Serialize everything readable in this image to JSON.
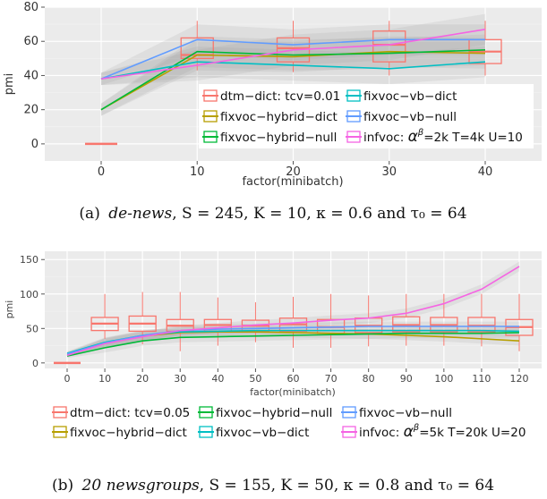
{
  "chart_data": [
    {
      "type": "line",
      "xlabel": "factor(minibatch)",
      "ylabel": "pmi",
      "categories": [
        "0",
        "10",
        "20",
        "30",
        "40"
      ],
      "ylim": [
        -10,
        80
      ],
      "yticks": [
        0,
        20,
        40,
        60,
        80
      ],
      "grid": true,
      "legend_position": "bottom-right inside",
      "series": [
        {
          "name": "dtm−dict: tcv=0.01",
          "color": "#f8766d",
          "kind": "boxplot",
          "boxes": [
            {
              "x": "0",
              "min": 0,
              "q1": 0,
              "median": 0,
              "q3": 0,
              "max": 0
            },
            {
              "x": "10",
              "min": 43,
              "q1": 50,
              "median": 52,
              "q3": 62,
              "max": 72
            },
            {
              "x": "20",
              "min": 42,
              "q1": 48,
              "median": 56,
              "q3": 62,
              "max": 72
            },
            {
              "x": "30",
              "min": 40,
              "q1": 48,
              "median": 58,
              "q3": 66,
              "max": 72
            },
            {
              "x": "40",
              "min": 40,
              "q1": 47,
              "median": 54,
              "q3": 61,
              "max": 72
            }
          ]
        },
        {
          "name": "fixvoc−hybrid−dict",
          "color": "#b79f00",
          "values": [
            20,
            52,
            51,
            54,
            53
          ]
        },
        {
          "name": "fixvoc−hybrid−null",
          "color": "#00ba38",
          "values": [
            20,
            54,
            52,
            53,
            55
          ]
        },
        {
          "name": "fixvoc−vb−dict",
          "color": "#00bfc4",
          "values": [
            38,
            48,
            46,
            44,
            48
          ]
        },
        {
          "name": "fixvoc−vb−null",
          "color": "#619cff",
          "values": [
            38,
            61,
            58,
            61,
            61
          ]
        },
        {
          "name": "infvoc: α^β=2k T=4k U=10",
          "color": "#f564e3",
          "values": [
            38,
            46,
            55,
            58,
            67
          ]
        }
      ],
      "caption_label": "(a)",
      "caption_dataset": "de-news",
      "caption_rest": ", S = 245, K = 10, κ = 0.6 and τ₀ = 64"
    },
    {
      "type": "line",
      "xlabel": "factor(minibatch)",
      "ylabel": "pmi",
      "categories": [
        "0",
        "10",
        "20",
        "30",
        "40",
        "50",
        "60",
        "70",
        "80",
        "90",
        "100",
        "110",
        "120"
      ],
      "ylim": [
        -8,
        162
      ],
      "yticks": [
        0,
        50,
        100,
        150
      ],
      "grid": true,
      "legend_position": "bottom",
      "series": [
        {
          "name": "dtm−dict: tcv=0.05",
          "color": "#f8766d",
          "kind": "boxplot",
          "boxes": [
            {
              "x": "0",
              "min": 0,
              "q1": 0,
              "median": 0,
              "q3": 0,
              "max": 0
            },
            {
              "x": "10",
              "min": 35,
              "q1": 47,
              "median": 57,
              "q3": 66,
              "max": 100
            },
            {
              "x": "20",
              "min": 27,
              "q1": 46,
              "median": 57,
              "q3": 68,
              "max": 103
            },
            {
              "x": "30",
              "min": 17,
              "q1": 46,
              "median": 54,
              "q3": 63,
              "max": 103
            },
            {
              "x": "40",
              "min": 25,
              "q1": 46,
              "median": 55,
              "q3": 63,
              "max": 95
            },
            {
              "x": "50",
              "min": 30,
              "q1": 46,
              "median": 54,
              "q3": 62,
              "max": 88
            },
            {
              "x": "60",
              "min": 22,
              "q1": 46,
              "median": 56,
              "q3": 65,
              "max": 96
            },
            {
              "x": "70",
              "min": 22,
              "q1": 43,
              "median": 52,
              "q3": 63,
              "max": 100
            },
            {
              "x": "80",
              "min": 24,
              "q1": 44,
              "median": 54,
              "q3": 65,
              "max": 98
            },
            {
              "x": "90",
              "min": 25,
              "q1": 45,
              "median": 55,
              "q3": 67,
              "max": 100
            },
            {
              "x": "100",
              "min": 25,
              "q1": 45,
              "median": 55,
              "q3": 66,
              "max": 100
            },
            {
              "x": "110",
              "min": 24,
              "q1": 45,
              "median": 54,
              "q3": 66,
              "max": 100
            },
            {
              "x": "120",
              "min": 17,
              "q1": 40,
              "median": 52,
              "q3": 63,
              "max": 100
            }
          ]
        },
        {
          "name": "fixvoc−hybrid−dict",
          "color": "#b79f00",
          "values": [
            12,
            29,
            39,
            44,
            45,
            45,
            44,
            43,
            42,
            40,
            38,
            35,
            32
          ]
        },
        {
          "name": "fixvoc−hybrid−null",
          "color": "#00ba38",
          "values": [
            10,
            22,
            32,
            37,
            38,
            39,
            40,
            41,
            42,
            43,
            43,
            43,
            44
          ]
        },
        {
          "name": "fixvoc−vb−dict",
          "color": "#00bfc4",
          "values": [
            14,
            30,
            40,
            45,
            46,
            47,
            47,
            47,
            47,
            47,
            47,
            47,
            46
          ]
        },
        {
          "name": "fixvoc−vb−null",
          "color": "#619cff",
          "values": [
            13,
            29,
            40,
            47,
            49,
            50,
            51,
            52,
            53,
            53,
            53,
            53,
            53
          ]
        },
        {
          "name": "infvoc: α^β=5k T=20k U=20",
          "color": "#f564e3",
          "values": [
            11,
            28,
            38,
            47,
            51,
            55,
            58,
            62,
            65,
            72,
            86,
            107,
            140
          ]
        }
      ],
      "caption_label": "(b)",
      "caption_dataset": "20 newsgroups",
      "caption_rest": ", S = 155, K = 50, κ = 0.8 and τ₀ = 64"
    }
  ]
}
